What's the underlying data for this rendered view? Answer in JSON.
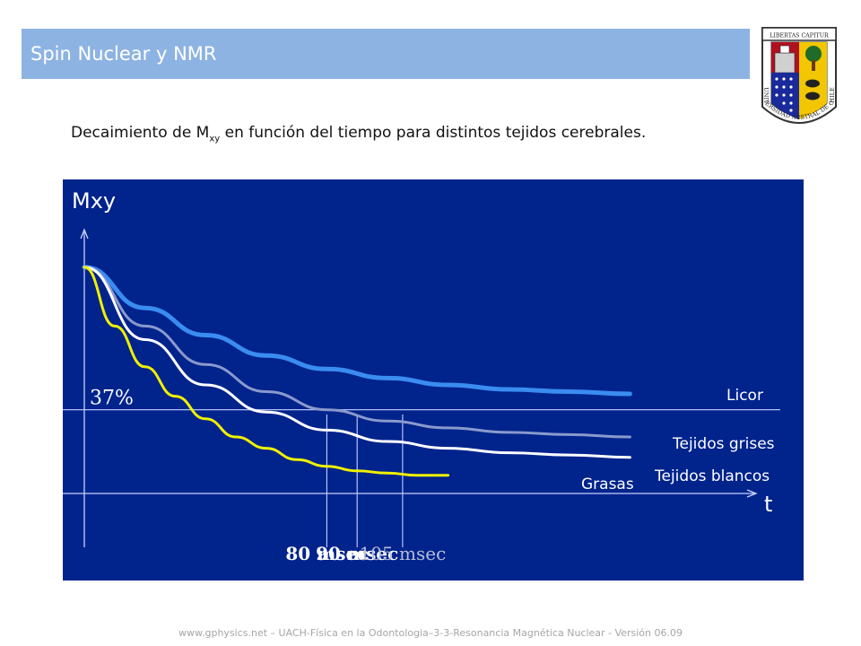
{
  "header": {
    "title": "Spin Nuclear y NMR",
    "accent_color": "#8db3e2"
  },
  "crest": {
    "icon": "university-crest-icon",
    "motto": "LIBERTAS CAPITUR",
    "name": "UNIVERSIDAD AUSTRAL DE CHILE"
  },
  "subtitle": {
    "prefix": "Decaimiento de M",
    "sub": "xy",
    "suffix": " en función del tiempo para distintos tejidos cerebrales."
  },
  "chart_data": {
    "type": "line",
    "ylabel": "Mxy",
    "xlabel": "t",
    "background": "#00238c",
    "threshold_label": "37%",
    "threshold_value": 0.37,
    "x_ticks": [
      "80 msec",
      "90 msec",
      "105 msec"
    ],
    "x_tick_values": [
      80,
      90,
      105
    ],
    "xlim": [
      0,
      200
    ],
    "ylim": [
      0,
      1.15
    ],
    "series": [
      {
        "name": "Licor",
        "color": "#3a8cf0",
        "x": [
          0,
          20,
          40,
          60,
          80,
          100,
          120,
          140,
          160,
          180
        ],
        "y": [
          1.0,
          0.82,
          0.7,
          0.61,
          0.55,
          0.51,
          0.48,
          0.46,
          0.45,
          0.44
        ]
      },
      {
        "name": "Tejidos grises",
        "color": "#8a9acc",
        "x": [
          0,
          20,
          40,
          60,
          80,
          100,
          120,
          140,
          160,
          180
        ],
        "y": [
          1.0,
          0.74,
          0.57,
          0.45,
          0.37,
          0.32,
          0.29,
          0.27,
          0.26,
          0.25
        ]
      },
      {
        "name": "Tejidos blancos",
        "color": "#ffffff",
        "x": [
          0,
          20,
          40,
          60,
          80,
          100,
          120,
          140,
          160,
          180
        ],
        "y": [
          1.0,
          0.68,
          0.48,
          0.36,
          0.28,
          0.23,
          0.2,
          0.18,
          0.17,
          0.16
        ]
      },
      {
        "name": "Grasas",
        "color": "#f0f000",
        "x": [
          0,
          10,
          20,
          30,
          40,
          50,
          60,
          70,
          80,
          90,
          100,
          110,
          120
        ],
        "y": [
          1.0,
          0.74,
          0.56,
          0.43,
          0.33,
          0.25,
          0.2,
          0.15,
          0.12,
          0.1,
          0.09,
          0.08,
          0.08
        ]
      }
    ]
  },
  "footer": {
    "text": "www.gphysics.net – UACH-Física en la Odontologia–3-3-Resonancia Magnética Nuclear - Versión 06.09"
  }
}
